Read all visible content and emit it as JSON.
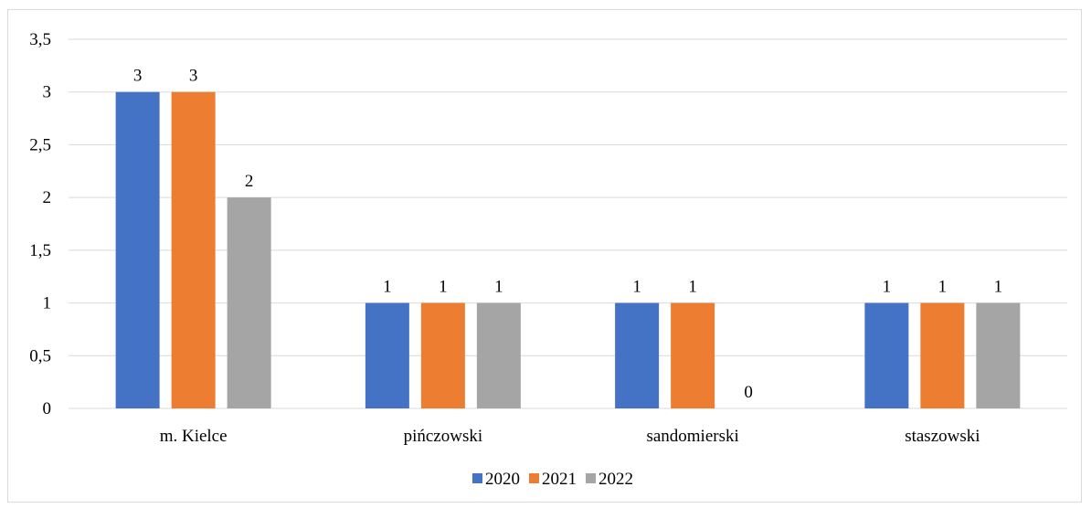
{
  "chart_data": {
    "type": "bar",
    "categories": [
      "m. Kielce",
      "pińczowski",
      "sandomierski",
      "staszowski"
    ],
    "series": [
      {
        "name": "2020",
        "values": [
          3,
          1,
          1,
          1
        ],
        "color": "#4472C4"
      },
      {
        "name": "2021",
        "values": [
          3,
          1,
          1,
          1
        ],
        "color": "#ED7D31"
      },
      {
        "name": "2022",
        "values": [
          2,
          1,
          0,
          1
        ],
        "color": "#A5A5A5"
      }
    ],
    "ylim": [
      0,
      3.5
    ],
    "yticks": [
      "0",
      "0,5",
      "1",
      "1,5",
      "2",
      "2,5",
      "3",
      "3,5"
    ],
    "ytick_values": [
      0,
      0.5,
      1,
      1.5,
      2,
      2.5,
      3,
      3.5
    ],
    "grid": true,
    "legend": "bottom",
    "gridline_color": "#d9d9d9"
  }
}
